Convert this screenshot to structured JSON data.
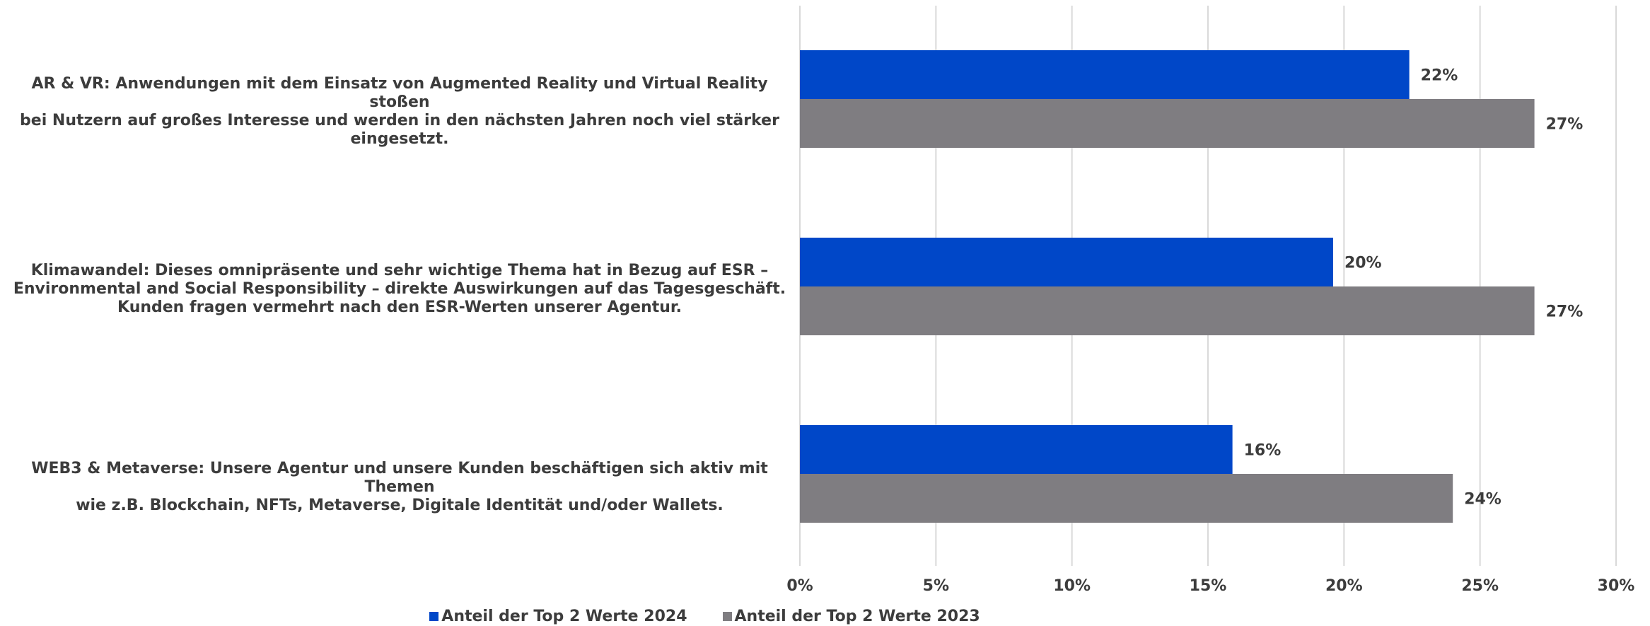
{
  "chart_data": {
    "type": "bar",
    "orientation": "horizontal",
    "categories": [
      "AR & VR: Anwendungen mit dem Einsatz von Augmented Reality und Virtual Reality stoßen bei Nutzern auf großes Interesse und werden in den nächsten Jahren noch viel stärker eingesetzt.",
      "Klimawandel: Dieses omnipräsente und sehr wichtige Thema hat in Bezug auf ESR – Environmental and Social Responsibility – direkte Auswirkungen auf das Tagesgeschäft. Kunden fragen vermehrt nach den ESR-Werten unserer Agentur.",
      "WEB3 & Metaverse: Unsere Agentur und unsere Kunden beschäftigen sich aktiv mit Themen wie z.B. Blockchain, NFTs, Metaverse, Digitale Identität und/oder Wallets."
    ],
    "category_lines": [
      [
        "AR & VR: Anwendungen mit dem Einsatz von Augmented Reality und Virtual Reality stoßen",
        "bei Nutzern auf großes Interesse und werden in den nächsten Jahren noch viel stärker",
        "eingesetzt."
      ],
      [
        "Klimawandel: Dieses omnipräsente und sehr wichtige Thema hat in Bezug auf ESR –",
        "Environmental and Social Responsibility – direkte Auswirkungen auf das Tagesgeschäft.",
        "Kunden fragen vermehrt nach den ESR-Werten unserer Agentur."
      ],
      [
        "WEB3 & Metaverse: Unsere Agentur und unsere Kunden beschäftigen sich aktiv mit Themen",
        "wie z.B. Blockchain, NFTs, Metaverse, Digitale Identität und/oder Wallets."
      ]
    ],
    "series": [
      {
        "name": "Anteil der Top 2 Werte 2024",
        "color": "#0047c8",
        "values": [
          22.4,
          19.6,
          15.9
        ],
        "labels": [
          "22%",
          "20%",
          "16%"
        ]
      },
      {
        "name": "Anteil der Top 2 Werte 2023",
        "color": "#7f7d81",
        "values": [
          27,
          27,
          24
        ],
        "labels": [
          "27%",
          "27%",
          "24%"
        ]
      }
    ],
    "xlim": [
      0,
      30
    ],
    "xticks": [
      0,
      5,
      10,
      15,
      20,
      25,
      30
    ],
    "xtick_labels": [
      "0%",
      "5%",
      "10%",
      "15%",
      "20%",
      "25%",
      "30%"
    ],
    "grid": true,
    "legend_position": "bottom",
    "title": "",
    "xlabel": "",
    "ylabel": ""
  }
}
